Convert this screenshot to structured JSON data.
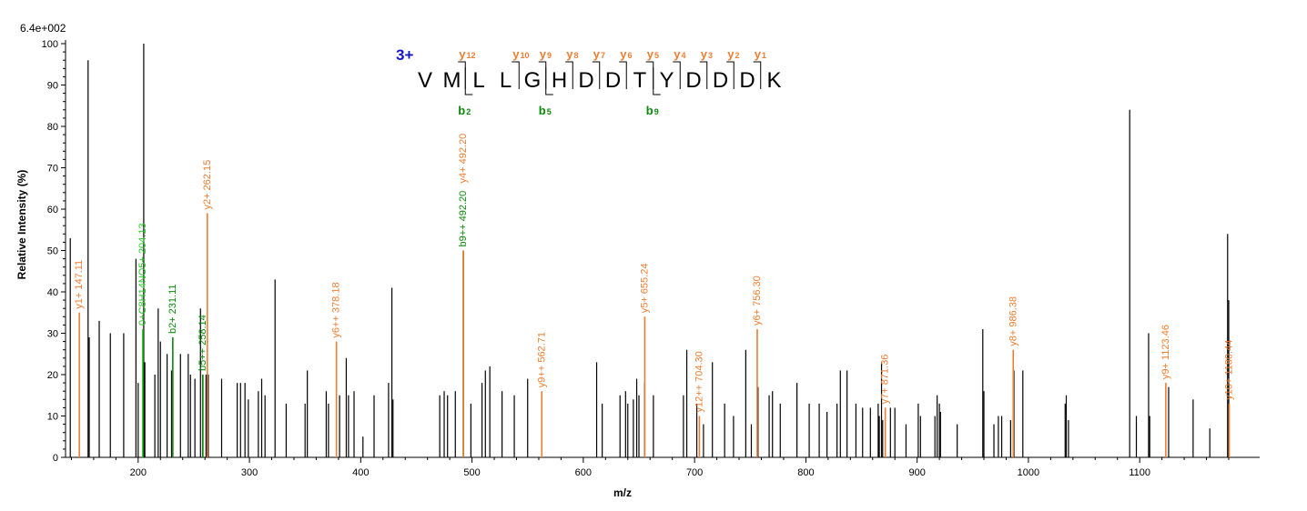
{
  "chart_data": {
    "type": "bar",
    "scale_label": "6.4e+002",
    "xlabel": "m/z",
    "ylabel": "Relative  Intensity (%)",
    "xlim": [
      138,
      1184
    ],
    "ylim": [
      0,
      100
    ],
    "x_ticks": [
      200,
      300,
      400,
      500,
      600,
      700,
      800,
      900,
      1000,
      1100
    ],
    "y_ticks": [
      0,
      10,
      20,
      30,
      40,
      50,
      60,
      70,
      80,
      90,
      100
    ],
    "colors": {
      "unmatched": "#000000",
      "y_ion": "#ed7d31",
      "b_ion": "#0a8a0a",
      "other_ion": "#22cc22"
    },
    "peptide": {
      "charge": "3+",
      "sequence": [
        "V",
        "M",
        "L",
        "L",
        "G",
        "H",
        "D",
        "D",
        "T",
        "Y",
        "D",
        "D",
        "D",
        "K"
      ],
      "y_ions": [
        {
          "label": "y",
          "sub": "12",
          "after": 2
        },
        {
          "label": "y",
          "sub": "10",
          "after": 4
        },
        {
          "label": "y",
          "sub": "9",
          "after": 5
        },
        {
          "label": "y",
          "sub": "8",
          "after": 6
        },
        {
          "label": "y",
          "sub": "7",
          "after": 7
        },
        {
          "label": "y",
          "sub": "6",
          "after": 8
        },
        {
          "label": "y",
          "sub": "5",
          "after": 9
        },
        {
          "label": "y",
          "sub": "4",
          "after": 10
        },
        {
          "label": "y",
          "sub": "3",
          "after": 11
        },
        {
          "label": "y",
          "sub": "2",
          "after": 12
        },
        {
          "label": "y",
          "sub": "1",
          "after": 13
        }
      ],
      "b_ions": [
        {
          "label": "b",
          "sub": "2",
          "after": 2
        },
        {
          "label": "b",
          "sub": "5",
          "after": 5
        },
        {
          "label": "b",
          "sub": "9",
          "after": 9
        }
      ]
    },
    "annotated_peaks": [
      {
        "mz": 147.11,
        "intensity": 35,
        "label": "y1+ 147.11",
        "ion": "y"
      },
      {
        "mz": 204.13,
        "intensity": 31,
        "label": "0+C8H14NO5+ 204.13",
        "ion": "other"
      },
      {
        "mz": 231.11,
        "intensity": 29,
        "label": "b2+ 231.11",
        "ion": "b"
      },
      {
        "mz": 258.14,
        "intensity": 20,
        "label": "b5++ 258.14",
        "ion": "b"
      },
      {
        "mz": 262.15,
        "intensity": 59,
        "label": "y2+ 262.15",
        "ion": "y"
      },
      {
        "mz": 378.18,
        "intensity": 28,
        "label": "y6++ 378.18",
        "ion": "y"
      },
      {
        "mz": 492.2,
        "intensity": 50,
        "label": "b9++ 492.20",
        "ion": "b"
      },
      {
        "mz": 492.2,
        "intensity": 50,
        "label": "y4+ 492.20",
        "ion": "y"
      },
      {
        "mz": 562.71,
        "intensity": 16,
        "label": "y9++ 562.71",
        "ion": "y"
      },
      {
        "mz": 655.24,
        "intensity": 34,
        "label": "y5+ 655.24",
        "ion": "y"
      },
      {
        "mz": 704.3,
        "intensity": 10,
        "label": "y12++ 704.30",
        "ion": "y"
      },
      {
        "mz": 756.3,
        "intensity": 31,
        "label": "y6+ 756.30",
        "ion": "y"
      },
      {
        "mz": 871.36,
        "intensity": 12,
        "label": "y7+ 871.36",
        "ion": "y"
      },
      {
        "mz": 986.38,
        "intensity": 26,
        "label": "y8+ 986.38",
        "ion": "y"
      },
      {
        "mz": 1123.46,
        "intensity": 18,
        "label": "y9+ 1123.46",
        "ion": "y"
      },
      {
        "mz": 1180.44,
        "intensity": 13,
        "label": "y10+ 1180.44",
        "ion": "y"
      }
    ],
    "unlabeled_peaks": [
      [
        139,
        53
      ],
      [
        155,
        96
      ],
      [
        156,
        29
      ],
      [
        165,
        33
      ],
      [
        175,
        30
      ],
      [
        187,
        30
      ],
      [
        198,
        48
      ],
      [
        200,
        18
      ],
      [
        205,
        100
      ],
      [
        206,
        23
      ],
      [
        215,
        20
      ],
      [
        218,
        36
      ],
      [
        220,
        28
      ],
      [
        226,
        25
      ],
      [
        230,
        21
      ],
      [
        238,
        25
      ],
      [
        245,
        25
      ],
      [
        247,
        20
      ],
      [
        251,
        19
      ],
      [
        256,
        36
      ],
      [
        258,
        20
      ],
      [
        261,
        20
      ],
      [
        263,
        20
      ],
      [
        275,
        19
      ],
      [
        289,
        18
      ],
      [
        292,
        18
      ],
      [
        296,
        18
      ],
      [
        299,
        14
      ],
      [
        308,
        16
      ],
      [
        311,
        19
      ],
      [
        314,
        15
      ],
      [
        323,
        43
      ],
      [
        333,
        13
      ],
      [
        350,
        13
      ],
      [
        352,
        21
      ],
      [
        369,
        16
      ],
      [
        371,
        13
      ],
      [
        381,
        15
      ],
      [
        387,
        24
      ],
      [
        389,
        15
      ],
      [
        394,
        16
      ],
      [
        402,
        5
      ],
      [
        412,
        15
      ],
      [
        425,
        18
      ],
      [
        428,
        41
      ],
      [
        429,
        14
      ],
      [
        471,
        15
      ],
      [
        475,
        16
      ],
      [
        478,
        15
      ],
      [
        485,
        16
      ],
      [
        499,
        13
      ],
      [
        509,
        18
      ],
      [
        512,
        21
      ],
      [
        516,
        22
      ],
      [
        527,
        16
      ],
      [
        538,
        15
      ],
      [
        550,
        19
      ],
      [
        612,
        23
      ],
      [
        617,
        13
      ],
      [
        633,
        15
      ],
      [
        638,
        16
      ],
      [
        640,
        13
      ],
      [
        645,
        14
      ],
      [
        648,
        19
      ],
      [
        650,
        15
      ],
      [
        655,
        18
      ],
      [
        663,
        15
      ],
      [
        690,
        15
      ],
      [
        693,
        26
      ],
      [
        702,
        13
      ],
      [
        708,
        8
      ],
      [
        716,
        23
      ],
      [
        727,
        13
      ],
      [
        735,
        10
      ],
      [
        746,
        26
      ],
      [
        751,
        8
      ],
      [
        757,
        17
      ],
      [
        767,
        15
      ],
      [
        770,
        16
      ],
      [
        777,
        13
      ],
      [
        792,
        18
      ],
      [
        803,
        13
      ],
      [
        812,
        13
      ],
      [
        819,
        11
      ],
      [
        828,
        13
      ],
      [
        831,
        21
      ],
      [
        837,
        21
      ],
      [
        845,
        13
      ],
      [
        851,
        12
      ],
      [
        858,
        12
      ],
      [
        865,
        13
      ],
      [
        866,
        10
      ],
      [
        868,
        23
      ],
      [
        869,
        9
      ],
      [
        876,
        12
      ],
      [
        880,
        12
      ],
      [
        890,
        8
      ],
      [
        901,
        13
      ],
      [
        903,
        10
      ],
      [
        916,
        10
      ],
      [
        918,
        15
      ],
      [
        920,
        13
      ],
      [
        921,
        11
      ],
      [
        936,
        8
      ],
      [
        959,
        31
      ],
      [
        960,
        16
      ],
      [
        969,
        8
      ],
      [
        973,
        10
      ],
      [
        976,
        10
      ],
      [
        984,
        9
      ],
      [
        987,
        21
      ],
      [
        995,
        21
      ],
      [
        1033,
        13
      ],
      [
        1034,
        15
      ],
      [
        1036,
        9
      ],
      [
        1091,
        84
      ],
      [
        1097,
        10
      ],
      [
        1108,
        30
      ],
      [
        1109,
        10
      ],
      [
        1126,
        17
      ],
      [
        1148,
        14
      ],
      [
        1163,
        7
      ],
      [
        1179,
        54
      ],
      [
        1180,
        38
      ]
    ]
  }
}
